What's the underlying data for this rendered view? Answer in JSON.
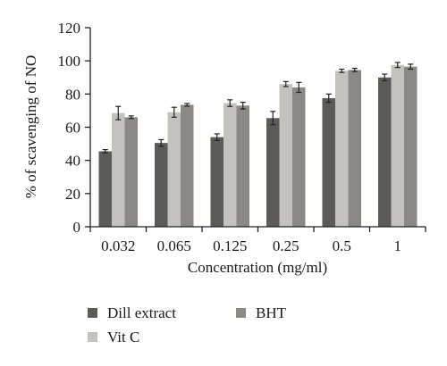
{
  "chart_data": {
    "type": "bar",
    "title": "",
    "xlabel": "Concentration (mg/ml)",
    "ylabel": "% of scavenging of NO",
    "ylim": [
      0,
      120
    ],
    "yticks": [
      0,
      20,
      40,
      60,
      80,
      100,
      120
    ],
    "categories": [
      "0.032",
      "0.065",
      "0.125",
      "0.25",
      "0.5",
      "1"
    ],
    "grid": false,
    "legend_position": "bottom",
    "series": [
      {
        "name": "Dill extract",
        "color": "#5b5b58",
        "values": [
          45.5,
          50.5,
          54,
          65.5,
          77.5,
          90
        ],
        "errors": [
          1,
          2,
          2,
          4,
          2.5,
          2
        ]
      },
      {
        "name": "Vit C",
        "color": "#c4c2bd",
        "values": [
          68.5,
          69,
          74.5,
          86,
          94,
          97.5
        ],
        "errors": [
          4,
          3,
          2,
          1.5,
          1,
          1.5
        ]
      },
      {
        "name": "BHT",
        "color": "#8b8985",
        "values": [
          66,
          73.5,
          73,
          84,
          94.5,
          96.5
        ],
        "errors": [
          0.8,
          0.8,
          2,
          3,
          1,
          1.5
        ]
      }
    ]
  }
}
